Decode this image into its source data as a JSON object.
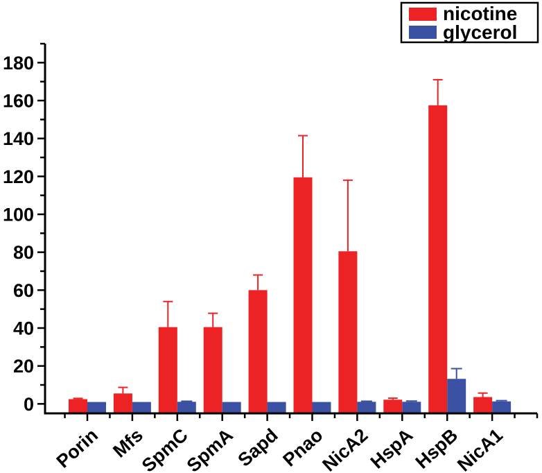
{
  "chart_data": {
    "type": "bar",
    "title": "",
    "xlabel": "",
    "ylabel": "",
    "categories": [
      "Porin",
      "Mfs",
      "SpmC",
      "SpmA",
      "Sapd",
      "Pnao",
      "NicA2",
      "HspA",
      "HspB",
      "NicA1"
    ],
    "series": [
      {
        "name": "nicotine",
        "color": "#EC2224",
        "values": [
          2.5,
          5.5,
          40.5,
          40.5,
          60,
          119.5,
          80.5,
          2.2,
          157.5,
          3.6
        ],
        "errors_plus": [
          0.4,
          3.2,
          13.5,
          7.3,
          8,
          22,
          37.5,
          0.8,
          13.5,
          2.1
        ]
      },
      {
        "name": "glycerol",
        "color": "#3B51A3",
        "values": [
          1,
          1,
          1.1,
          1,
          1,
          1,
          1.1,
          1.1,
          13.2,
          1.3
        ],
        "errors_plus": [
          0,
          0,
          0.3,
          0,
          0,
          0,
          0.3,
          0.4,
          5.4,
          0.4
        ]
      }
    ],
    "ylim": [
      -5,
      190
    ],
    "yticks_major": [
      0,
      20,
      40,
      60,
      80,
      100,
      120,
      140,
      160,
      180
    ],
    "yticks_minor": [
      10,
      30,
      50,
      70,
      90,
      110,
      130,
      150,
      170,
      190
    ],
    "grid": false,
    "legend_position": "top-right",
    "bar_grouping": "paired, nicotine left / glycerol right, bars touch",
    "error_bar_direction": "upper only",
    "axis_color": "#000000",
    "background_color": "#ffffff"
  }
}
